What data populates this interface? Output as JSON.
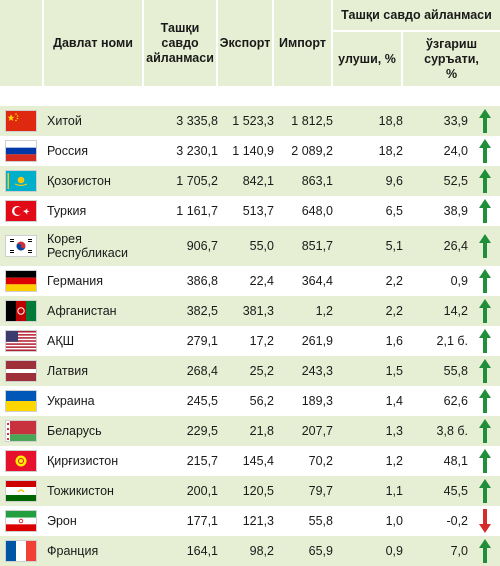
{
  "header": {
    "country_col": "Давлат номи",
    "trade_col": "Ташқи савдо айланмаси",
    "export_col": "Экспорт",
    "import_col": "Импорт",
    "group_col": "Ташқи савдо айланмаси",
    "share_col": "улуши, %",
    "change_col": "ўзгариш суръати, %"
  },
  "colors": {
    "header_bg": "#e6efd3",
    "row_alt_bg": "#e6efd3",
    "arrow_up": "#1f8f3a",
    "arrow_down": "#d42b2b"
  },
  "rows": [
    {
      "flag": "china-flag-icon",
      "country": "Хитой",
      "trade": "3 335,8",
      "export": "1 523,3",
      "import": "1 812,5",
      "share": "18,8",
      "change": "33,9",
      "trend": "up"
    },
    {
      "flag": "russia-flag-icon",
      "country": "Россия",
      "trade": "3 230,1",
      "export": "1 140,9",
      "import": "2 089,2",
      "share": "18,2",
      "change": "24,0",
      "trend": "up"
    },
    {
      "flag": "kazakhstan-flag-icon",
      "country": "Қозоғистон",
      "trade": "1 705,2",
      "export": "842,1",
      "import": "863,1",
      "share": "9,6",
      "change": "52,5",
      "trend": "up"
    },
    {
      "flag": "turkey-flag-icon",
      "country": "Туркия",
      "trade": "1 161,7",
      "export": "513,7",
      "import": "648,0",
      "share": "6,5",
      "change": "38,9",
      "trend": "up"
    },
    {
      "flag": "south-korea-flag-icon",
      "country": "Корея Республикаси",
      "trade": "906,7",
      "export": "55,0",
      "import": "851,7",
      "share": "5,1",
      "change": "26,4",
      "trend": "up"
    },
    {
      "flag": "germany-flag-icon",
      "country": "Германия",
      "trade": "386,8",
      "export": "22,4",
      "import": "364,4",
      "share": "2,2",
      "change": "0,9",
      "trend": "up"
    },
    {
      "flag": "afghanistan-flag-icon",
      "country": "Афганистан",
      "trade": "382,5",
      "export": "381,3",
      "import": "1,2",
      "share": "2,2",
      "change": "14,2",
      "trend": "up"
    },
    {
      "flag": "usa-flag-icon",
      "country": "АҚШ",
      "trade": "279,1",
      "export": "17,2",
      "import": "261,9",
      "share": "1,6",
      "change": "2,1 б.",
      "trend": "up"
    },
    {
      "flag": "latvia-flag-icon",
      "country": "Латвия",
      "trade": "268,4",
      "export": "25,2",
      "import": "243,3",
      "share": "1,5",
      "change": "55,8",
      "trend": "up"
    },
    {
      "flag": "ukraine-flag-icon",
      "country": "Украина",
      "trade": "245,5",
      "export": "56,2",
      "import": "189,3",
      "share": "1,4",
      "change": "62,6",
      "trend": "up"
    },
    {
      "flag": "belarus-flag-icon",
      "country": "Беларусь",
      "trade": "229,5",
      "export": "21,8",
      "import": "207,7",
      "share": "1,3",
      "change": "3,8 б.",
      "trend": "up"
    },
    {
      "flag": "kyrgyzstan-flag-icon",
      "country": "Қирғизистон",
      "trade": "215,7",
      "export": "145,4",
      "import": "70,2",
      "share": "1,2",
      "change": "48,1",
      "trend": "up"
    },
    {
      "flag": "tajikistan-flag-icon",
      "country": "Тожикистон",
      "trade": "200,1",
      "export": "120,5",
      "import": "79,7",
      "share": "1,1",
      "change": "45,5",
      "trend": "up"
    },
    {
      "flag": "iran-flag-icon",
      "country": "Эрон",
      "trade": "177,1",
      "export": "121,3",
      "import": "55,8",
      "share": "1,0",
      "change": "-0,2",
      "trend": "down"
    },
    {
      "flag": "france-flag-icon",
      "country": "Франция",
      "trade": "164,1",
      "export": "98,2",
      "import": "65,9",
      "share": "0,9",
      "change": "7,0",
      "trend": "up"
    }
  ]
}
